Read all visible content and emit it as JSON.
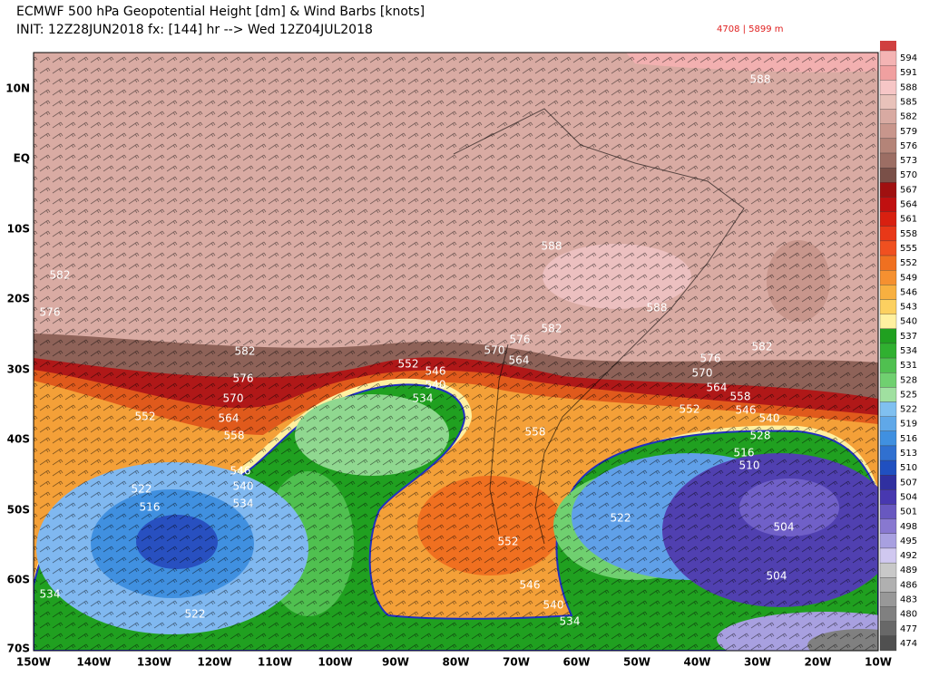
{
  "header": {
    "title": "ECMWF 500 hPa Geopotential Height [dm] & Wind Barbs [knots]",
    "init": "INIT: 12Z28JUN2018 fx: [144] hr --> Wed 12Z04JUL2018",
    "readout": "4708 | 5899 m"
  },
  "map": {
    "lat_labels": [
      "10N",
      "EQ",
      "10S",
      "20S",
      "30S",
      "40S",
      "50S",
      "60S",
      "70S"
    ],
    "lon_labels": [
      "150W",
      "140W",
      "130W",
      "120W",
      "110W",
      "100W",
      "90W",
      "80W",
      "70W",
      "60W",
      "50W",
      "40W",
      "30W",
      "20W",
      "10W"
    ],
    "contour_labels": [
      582,
      576,
      582,
      576,
      570,
      564,
      558,
      552,
      546,
      540,
      534,
      522,
      516,
      522,
      534,
      588,
      588,
      582,
      576,
      570,
      564,
      552,
      546,
      540,
      534,
      558,
      552,
      546,
      540,
      534,
      576,
      582,
      570,
      564,
      558,
      552,
      546,
      540,
      528,
      516,
      510,
      522,
      504,
      504,
      588
    ]
  },
  "colorbar": {
    "levels": [
      594,
      591,
      588,
      585,
      582,
      579,
      576,
      573,
      570,
      567,
      564,
      561,
      558,
      555,
      552,
      549,
      546,
      543,
      540,
      537,
      534,
      531,
      528,
      525,
      522,
      519,
      516,
      513,
      510,
      507,
      504,
      501,
      498,
      495,
      492,
      489,
      486,
      483,
      480,
      477,
      474
    ],
    "colors": [
      "#f4b4b4",
      "#f0a0a0",
      "#f6c6c6",
      "#e8c2ba",
      "#d8aaa2",
      "#c8968c",
      "#b48478",
      "#9c6e64",
      "#7a5048",
      "#a01010",
      "#c01010",
      "#d82010",
      "#e83818",
      "#f05020",
      "#f07020",
      "#f59030",
      "#f8b040",
      "#fcd060",
      "#fff0a0",
      "#20a020",
      "#30b030",
      "#50c050",
      "#70d070",
      "#a0e0a0",
      "#80c0f0",
      "#60a8e8",
      "#4090e0",
      "#3070d0",
      "#2050c0",
      "#3030a0",
      "#4838b0",
      "#6858c0",
      "#8878d0",
      "#a8a0e0",
      "#d0c8f0",
      "#c8c8c8",
      "#b0b0b0",
      "#989898",
      "#808080",
      "#686868",
      "#505050"
    ]
  }
}
